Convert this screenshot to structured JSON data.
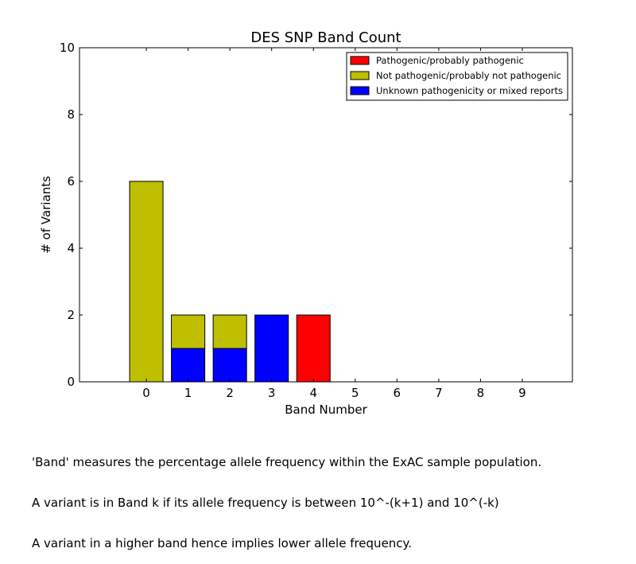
{
  "chart_data": {
    "type": "bar",
    "stacked": true,
    "title": "DES SNP Band Count",
    "xlabel": "Band Number",
    "ylabel": "# of Variants",
    "categories": [
      "0",
      "1",
      "2",
      "3",
      "4",
      "5",
      "6",
      "7",
      "8",
      "9"
    ],
    "ylim": [
      0,
      10
    ],
    "yticks": [
      "0",
      "2",
      "4",
      "6",
      "8",
      "10"
    ],
    "grid": false,
    "legend_position": "top-right",
    "series": [
      {
        "name": "Unknown pathogenicity or mixed reports",
        "color": "#0000ff",
        "values": [
          0,
          1,
          1,
          2,
          0,
          0,
          0,
          0,
          0,
          0
        ]
      },
      {
        "name": "Not pathogenic/probably not pathogenic",
        "color": "#bfbf00",
        "values": [
          6,
          1,
          1,
          0,
          0,
          0,
          0,
          0,
          0,
          0
        ]
      },
      {
        "name": "Pathogenic/probably pathogenic",
        "color": "#ff0000",
        "values": [
          0,
          0,
          0,
          0,
          2,
          0,
          0,
          0,
          0,
          0
        ]
      }
    ],
    "legend_order": [
      2,
      1,
      0
    ]
  },
  "caption": {
    "lines": [
      "'Band' measures the percentage allele frequency within the ExAC sample population.",
      "A variant is in Band k if its allele frequency is between 10^-(k+1) and 10^(-k)",
      "A variant in a higher band hence implies lower allele frequency."
    ]
  }
}
